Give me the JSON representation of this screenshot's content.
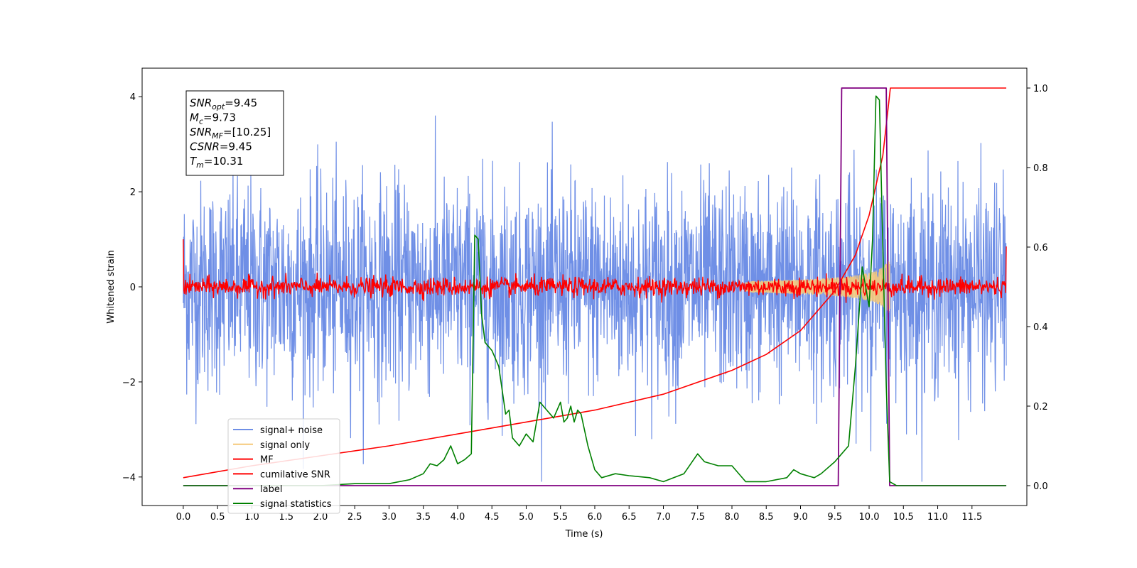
{
  "chart_data": {
    "type": "line",
    "xlabel": "Time (s)",
    "ylabel": "Whitened strain",
    "xlim": [
      -0.6,
      12.3
    ],
    "ylim": [
      -4.6,
      4.6
    ],
    "ylim_right": [
      -0.05,
      1.05
    ],
    "x_ticks": [
      "0.0",
      "0.5",
      "1.0",
      "1.5",
      "2.0",
      "2.5",
      "3.0",
      "3.5",
      "4.0",
      "4.5",
      "5.0",
      "5.5",
      "6.0",
      "6.5",
      "7.0",
      "7.5",
      "8.0",
      "8.5",
      "9.0",
      "9.5",
      "10.0",
      "10.5",
      "11.0",
      "11.5"
    ],
    "y_ticks_left": [
      "4",
      "2",
      "0",
      "−2",
      "−4"
    ],
    "y_ticks_right": [
      "1.0",
      "0.8",
      "0.6",
      "0.4",
      "0.2",
      "0.0"
    ],
    "annotation": [
      {
        "base": "SNR",
        "sub": "opt",
        "value": "=9.45"
      },
      {
        "base": "M",
        "sub": "c",
        "value": "=9.73"
      },
      {
        "base": "SNR",
        "sub": "MF",
        "value": "=[10.25]"
      },
      {
        "base": "CSNR",
        "sub": "",
        "value": "=9.45"
      },
      {
        "base": "T",
        "sub": "m",
        "value": "=10.31"
      }
    ],
    "legend": {
      "position": "lower-left",
      "entries": [
        {
          "label": "signal+ noise",
          "color": "#6f8fe6"
        },
        {
          "label": "signal only",
          "color": "#f5c97a"
        },
        {
          "label": "MF",
          "color": "#ff0000"
        },
        {
          "label": "cumilative SNR",
          "color": "#ff0000"
        },
        {
          "label": "label",
          "color": "#800080"
        },
        {
          "label": "signal statistics",
          "color": "#008000"
        }
      ]
    },
    "series": [
      {
        "name": "signal+ noise",
        "axis": "left",
        "kind": "noise",
        "x_range": [
          0.0,
          12.0
        ],
        "mean": 0.0,
        "std": 1.1,
        "approx_range": [
          -4.1,
          4.1
        ],
        "color": "#6f8fe6"
      },
      {
        "name": "signal only",
        "axis": "left",
        "kind": "chirp",
        "x_range": [
          8.2,
          10.31
        ],
        "peak_amplitude": 0.6,
        "color": "#f5c97a"
      },
      {
        "name": "MF",
        "axis": "left",
        "kind": "noise",
        "x_range": [
          0.0,
          12.0
        ],
        "mean": 0.0,
        "std": 0.1,
        "edge_values": [
          1.0,
          0.85
        ],
        "color": "#ff0000"
      },
      {
        "name": "cumilative SNR",
        "axis": "right",
        "x": [
          0.0,
          1.0,
          2.0,
          3.0,
          4.0,
          5.0,
          6.0,
          7.0,
          8.0,
          8.5,
          9.0,
          9.5,
          9.8,
          10.0,
          10.2,
          10.31,
          11.0,
          12.0
        ],
        "y": [
          0.02,
          0.05,
          0.075,
          0.1,
          0.13,
          0.16,
          0.19,
          0.23,
          0.29,
          0.33,
          0.39,
          0.49,
          0.58,
          0.68,
          0.83,
          1.0,
          1.0,
          1.0
        ],
        "color": "#ff0000"
      },
      {
        "name": "label",
        "axis": "right",
        "x": [
          0.0,
          9.55,
          9.6,
          10.25,
          10.3,
          12.0
        ],
        "y": [
          0.0,
          0.0,
          1.0,
          1.0,
          0.0,
          0.0
        ],
        "color": "#800080"
      },
      {
        "name": "signal statistics",
        "axis": "right",
        "x": [
          0.0,
          0.5,
          1.0,
          1.5,
          2.0,
          2.5,
          3.0,
          3.3,
          3.5,
          3.6,
          3.7,
          3.8,
          3.9,
          4.0,
          4.1,
          4.2,
          4.25,
          4.3,
          4.35,
          4.4,
          4.5,
          4.6,
          4.7,
          4.75,
          4.8,
          4.9,
          5.0,
          5.1,
          5.2,
          5.3,
          5.4,
          5.5,
          5.55,
          5.6,
          5.65,
          5.7,
          5.75,
          5.8,
          5.9,
          6.0,
          6.1,
          6.3,
          6.5,
          6.8,
          7.0,
          7.3,
          7.5,
          7.6,
          7.8,
          8.0,
          8.2,
          8.5,
          8.8,
          8.9,
          9.0,
          9.2,
          9.3,
          9.5,
          9.6,
          9.7,
          9.8,
          9.9,
          10.0,
          10.05,
          10.1,
          10.15,
          10.2,
          10.25,
          10.3,
          10.4,
          10.5,
          11.0,
          11.5,
          12.0
        ],
        "y": [
          0.0,
          0.0,
          0.0,
          0.0,
          0.0,
          0.005,
          0.005,
          0.015,
          0.03,
          0.055,
          0.05,
          0.065,
          0.1,
          0.055,
          0.065,
          0.08,
          0.63,
          0.62,
          0.43,
          0.36,
          0.34,
          0.3,
          0.18,
          0.19,
          0.12,
          0.1,
          0.13,
          0.11,
          0.21,
          0.19,
          0.17,
          0.21,
          0.16,
          0.17,
          0.2,
          0.16,
          0.19,
          0.18,
          0.1,
          0.04,
          0.02,
          0.03,
          0.025,
          0.02,
          0.01,
          0.03,
          0.08,
          0.06,
          0.05,
          0.05,
          0.01,
          0.01,
          0.02,
          0.04,
          0.03,
          0.02,
          0.03,
          0.06,
          0.08,
          0.1,
          0.3,
          0.55,
          0.45,
          0.62,
          0.98,
          0.97,
          0.6,
          0.25,
          0.01,
          0.0,
          0.0,
          0.0,
          0.0,
          0.0
        ],
        "color": "#008000"
      }
    ]
  }
}
